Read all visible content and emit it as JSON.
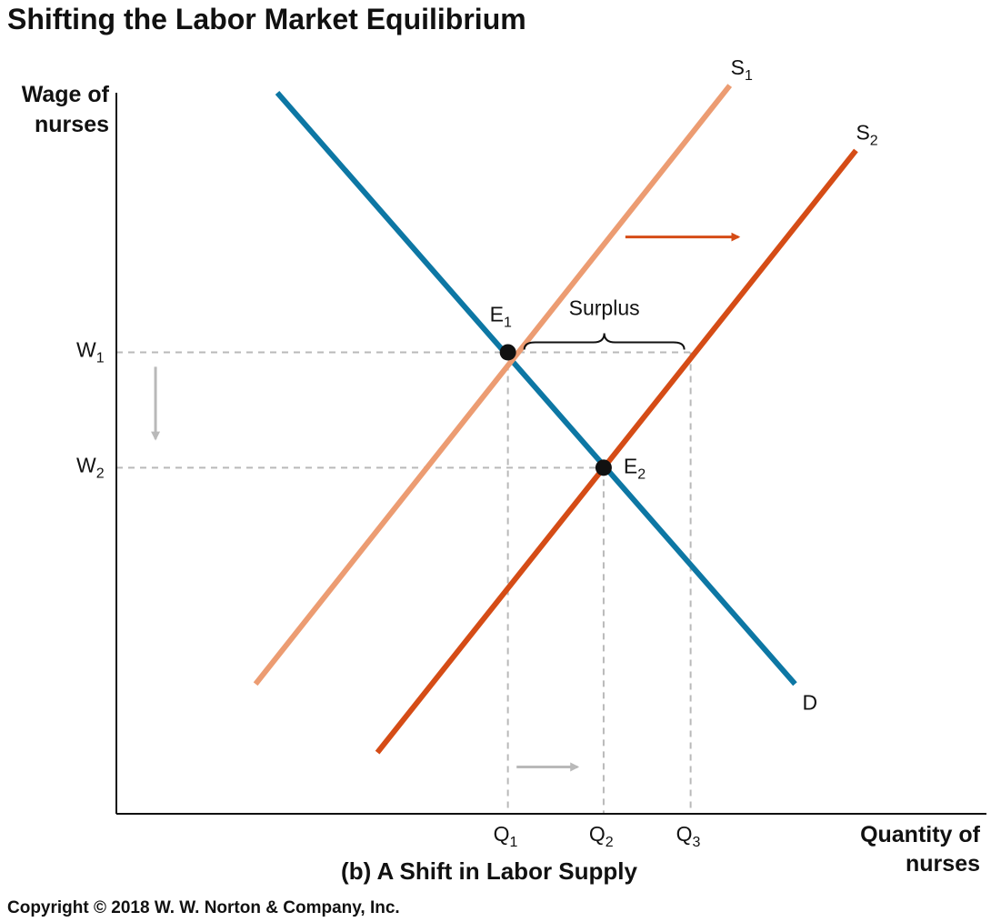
{
  "colors": {
    "demand": "#0d77a4",
    "supply1": "#ec9c72",
    "supply2": "#d54c16",
    "guide": "#b9b9b9",
    "point": "#111111",
    "axis": "#111111"
  },
  "chart_data": {
    "type": "line",
    "title": "Shifting the Labor Market Equilibrium",
    "subtitle": "(b) A Shift in Labor Supply",
    "xlabel": [
      "Quantity of",
      "nurses"
    ],
    "ylabel": [
      "Wage of",
      "nurses"
    ],
    "xlim": [
      0,
      100
    ],
    "ylim": [
      0,
      100
    ],
    "x_ticks": [
      {
        "base": "Q",
        "sub": "1",
        "value": 45
      },
      {
        "base": "Q",
        "sub": "2",
        "value": 56
      },
      {
        "base": "Q",
        "sub": "3",
        "value": 66
      }
    ],
    "y_ticks": [
      {
        "base": "W",
        "sub": "1",
        "value": 64
      },
      {
        "base": "W",
        "sub": "2",
        "value": 48
      }
    ],
    "series": [
      {
        "key": "demand",
        "name": "D",
        "sub": "",
        "points": [
          [
            18.5,
            100
          ],
          [
            78,
            18
          ]
        ]
      },
      {
        "key": "supply1",
        "name": "S",
        "sub": "1",
        "points": [
          [
            16,
            18
          ],
          [
            70.5,
            101
          ]
        ]
      },
      {
        "key": "supply2",
        "name": "S",
        "sub": "2",
        "points": [
          [
            30,
            8.5
          ],
          [
            85,
            92
          ]
        ]
      }
    ],
    "points": [
      {
        "base": "E",
        "sub": "1",
        "x": 45,
        "y": 64
      },
      {
        "base": "E",
        "sub": "2",
        "x": 56,
        "y": 48
      }
    ],
    "annotations": [
      {
        "text": "Surplus",
        "from_x": 45,
        "to_x": 66,
        "y": 64
      }
    ]
  },
  "footer": {
    "copyright": "Copyright © 2018 W. W. Norton & Company, Inc."
  }
}
